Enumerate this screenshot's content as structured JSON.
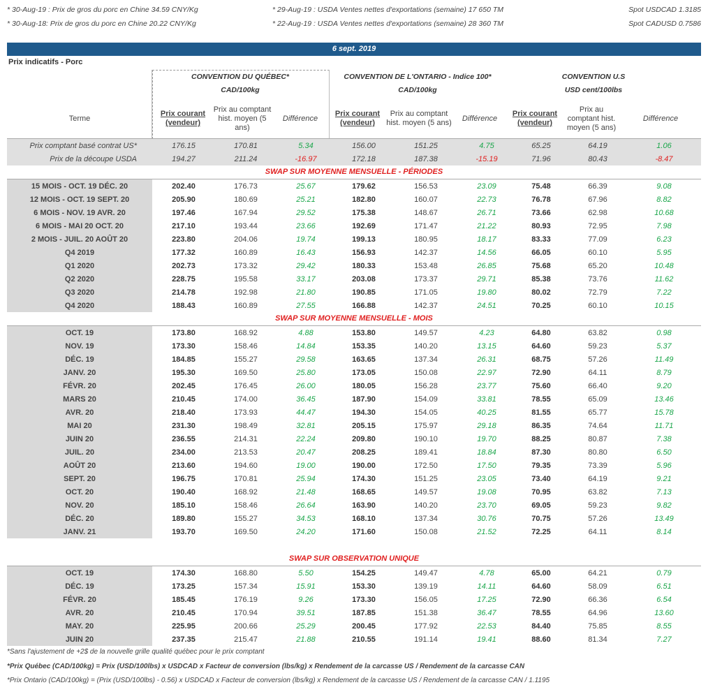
{
  "notes": {
    "left": [
      "* 30-Aug-19 : Prix de gros du porc en Chine 34.59 CNY/Kg",
      "* 30-Aug-18: Prix de gros du porc en Chine 20.22  CNY/Kg"
    ],
    "mid": [
      "* 29-Aug-19 : USDA Ventes nettes d'exportations (semaine)  17 650 TM",
      "* 22-Aug-19 : USDA Ventes nettes d'exportations (semaine) 28 360 TM"
    ],
    "right": [
      "Spot USDCAD 1.3185",
      "Spot CADUSD 0.7586"
    ]
  },
  "date": "6 sept. 2019",
  "section_title": "Prix indicatifs - Porc",
  "conventions": [
    {
      "title": "CONVENTION DU QUÉBEC*",
      "unit": "CAD/100kg"
    },
    {
      "title": "CONVENTION DE L'ONTARIO - Indice 100*",
      "unit": "CAD/100kg"
    },
    {
      "title": "CONVENTION U.S",
      "unit": "USD cent/100lbs"
    }
  ],
  "headers": {
    "term": "Terme",
    "current": "Prix courant (vendeur)",
    "hist_qc": "Prix au comptant hist. moyen (5 ans)",
    "hist_on": "Prix au comptant hist. moyen (5 ans)",
    "hist_us": "Prix au comptant hist. moyen (5 ans)",
    "diff": "Différence"
  },
  "spot_rows": [
    {
      "label": "Prix comptant basé contrat US*",
      "v": [
        "176.15",
        "170.81",
        "5.34",
        "156.00",
        "151.25",
        "4.75",
        "65.25",
        "64.19",
        "1.06"
      ]
    },
    {
      "label": "Prix de la découpe USDA",
      "v": [
        "194.27",
        "211.24",
        "-16.97",
        "172.18",
        "187.38",
        "-15.19",
        "71.96",
        "80.43",
        "-8.47"
      ]
    }
  ],
  "swap_periods_title": "SWAP SUR MOYENNE MENSUELLE - PÉRIODES",
  "swap_periods": [
    {
      "label": "15 MOIS -  OCT. 19 DÉC. 20",
      "v": [
        "202.40",
        "176.73",
        "25.67",
        "179.62",
        "156.53",
        "23.09",
        "75.48",
        "66.39",
        "9.08"
      ]
    },
    {
      "label": "12 MOIS -  OCT. 19 SEPT. 20",
      "v": [
        "205.90",
        "180.69",
        "25.21",
        "182.80",
        "160.07",
        "22.73",
        "76.78",
        "67.96",
        "8.82"
      ]
    },
    {
      "label": "6 MOIS -  NOV. 19 AVR. 20",
      "v": [
        "197.46",
        "167.94",
        "29.52",
        "175.38",
        "148.67",
        "26.71",
        "73.66",
        "62.98",
        "10.68"
      ]
    },
    {
      "label": "6 MOIS -  MAI 20 OCT. 20",
      "v": [
        "217.10",
        "193.44",
        "23.66",
        "192.69",
        "171.47",
        "21.22",
        "80.93",
        "72.95",
        "7.98"
      ]
    },
    {
      "label": "2 MOIS -  JUIL. 20  AOÛT 20",
      "v": [
        "223.80",
        "204.06",
        "19.74",
        "199.13",
        "180.95",
        "18.17",
        "83.33",
        "77.09",
        "6.23"
      ]
    },
    {
      "label": "Q4 2019",
      "v": [
        "177.32",
        "160.89",
        "16.43",
        "156.93",
        "142.37",
        "14.56",
        "66.05",
        "60.10",
        "5.95"
      ]
    },
    {
      "label": "Q1 2020",
      "v": [
        "202.73",
        "173.32",
        "29.42",
        "180.33",
        "153.48",
        "26.85",
        "75.68",
        "65.20",
        "10.48"
      ]
    },
    {
      "label": "Q2 2020",
      "v": [
        "228.75",
        "195.58",
        "33.17",
        "203.08",
        "173.37",
        "29.71",
        "85.38",
        "73.76",
        "11.62"
      ]
    },
    {
      "label": "Q3 2020",
      "v": [
        "214.78",
        "192.98",
        "21.80",
        "190.85",
        "171.05",
        "19.80",
        "80.02",
        "72.79",
        "7.22"
      ]
    },
    {
      "label": "Q4 2020",
      "v": [
        "188.43",
        "160.89",
        "27.55",
        "166.88",
        "142.37",
        "24.51",
        "70.25",
        "60.10",
        "10.15"
      ]
    }
  ],
  "swap_months_title": "SWAP SUR MOYENNE MENSUELLE - MOIS",
  "swap_months": [
    {
      "label": "OCT. 19",
      "v": [
        "173.80",
        "168.92",
        "4.88",
        "153.80",
        "149.57",
        "4.23",
        "64.80",
        "63.82",
        "0.98"
      ]
    },
    {
      "label": "NOV. 19",
      "v": [
        "173.30",
        "158.46",
        "14.84",
        "153.35",
        "140.20",
        "13.15",
        "64.60",
        "59.23",
        "5.37"
      ]
    },
    {
      "label": "DÉC. 19",
      "v": [
        "184.85",
        "155.27",
        "29.58",
        "163.65",
        "137.34",
        "26.31",
        "68.75",
        "57.26",
        "11.49"
      ]
    },
    {
      "label": "JANV. 20",
      "v": [
        "195.30",
        "169.50",
        "25.80",
        "173.05",
        "150.08",
        "22.97",
        "72.90",
        "64.11",
        "8.79"
      ]
    },
    {
      "label": "FÉVR. 20",
      "v": [
        "202.45",
        "176.45",
        "26.00",
        "180.05",
        "156.28",
        "23.77",
        "75.60",
        "66.40",
        "9.20"
      ]
    },
    {
      "label": "MARS 20",
      "v": [
        "210.45",
        "174.00",
        "36.45",
        "187.90",
        "154.09",
        "33.81",
        "78.55",
        "65.09",
        "13.46"
      ]
    },
    {
      "label": "AVR. 20",
      "v": [
        "218.40",
        "173.93",
        "44.47",
        "194.30",
        "154.05",
        "40.25",
        "81.55",
        "65.77",
        "15.78"
      ]
    },
    {
      "label": "MAI 20",
      "v": [
        "231.30",
        "198.49",
        "32.81",
        "205.15",
        "175.97",
        "29.18",
        "86.35",
        "74.64",
        "11.71"
      ]
    },
    {
      "label": "JUIN 20",
      "v": [
        "236.55",
        "214.31",
        "22.24",
        "209.80",
        "190.10",
        "19.70",
        "88.25",
        "80.87",
        "7.38"
      ]
    },
    {
      "label": "JUIL. 20",
      "v": [
        "234.00",
        "213.53",
        "20.47",
        "208.25",
        "189.41",
        "18.84",
        "87.30",
        "80.80",
        "6.50"
      ]
    },
    {
      "label": "AOÛT 20",
      "v": [
        "213.60",
        "194.60",
        "19.00",
        "190.00",
        "172.50",
        "17.50",
        "79.35",
        "73.39",
        "5.96"
      ]
    },
    {
      "label": "SEPT. 20",
      "v": [
        "196.75",
        "170.81",
        "25.94",
        "174.30",
        "151.25",
        "23.05",
        "73.40",
        "64.19",
        "9.21"
      ]
    },
    {
      "label": "OCT. 20",
      "v": [
        "190.40",
        "168.92",
        "21.48",
        "168.65",
        "149.57",
        "19.08",
        "70.95",
        "63.82",
        "7.13"
      ]
    },
    {
      "label": "NOV. 20",
      "v": [
        "185.10",
        "158.46",
        "26.64",
        "163.90",
        "140.20",
        "23.70",
        "69.05",
        "59.23",
        "9.82"
      ]
    },
    {
      "label": "DÉC. 20",
      "v": [
        "189.80",
        "155.27",
        "34.53",
        "168.10",
        "137.34",
        "30.76",
        "70.75",
        "57.26",
        "13.49"
      ]
    },
    {
      "label": "JANV. 21",
      "v": [
        "193.70",
        "169.50",
        "24.20",
        "171.60",
        "150.08",
        "21.52",
        "72.25",
        "64.11",
        "8.14"
      ]
    }
  ],
  "swap_obs_title": "SWAP SUR OBSERVATION UNIQUE",
  "swap_obs": [
    {
      "label": "OCT. 19",
      "v": [
        "174.30",
        "168.80",
        "5.50",
        "154.25",
        "149.47",
        "4.78",
        "65.00",
        "64.21",
        "0.79"
      ]
    },
    {
      "label": "DÉC. 19",
      "v": [
        "173.25",
        "157.34",
        "15.91",
        "153.30",
        "139.19",
        "14.11",
        "64.60",
        "58.09",
        "6.51"
      ]
    },
    {
      "label": "FÉVR. 20",
      "v": [
        "185.45",
        "176.19",
        "9.26",
        "173.30",
        "156.05",
        "17.25",
        "72.90",
        "66.36",
        "6.54"
      ]
    },
    {
      "label": "AVR. 20",
      "v": [
        "210.45",
        "170.94",
        "39.51",
        "187.85",
        "151.38",
        "36.47",
        "78.55",
        "64.96",
        "13.60"
      ]
    },
    {
      "label": "MAY. 20",
      "v": [
        "225.95",
        "200.66",
        "25.29",
        "200.45",
        "177.92",
        "22.53",
        "84.40",
        "75.85",
        "8.55"
      ]
    },
    {
      "label": "JUIN 20",
      "v": [
        "237.35",
        "215.47",
        "21.88",
        "210.55",
        "191.14",
        "19.41",
        "88.60",
        "81.34",
        "7.27"
      ]
    }
  ],
  "footer": [
    "*Sans l'ajustement de +2$ de la nouvelle grille qualité québec pour le prix comptant",
    "*Prix Québec (CAD/100kg) = Prix (USD/100lbs) x USDCAD x Facteur de conversion (lbs/kg) x Rendement de la carcasse US / Rendement de la carcasse CAN",
    "*Prix Ontario (CAD/100kg) = (Prix (USD/100lbs) - 0.56) x USDCAD x Facteur de conversion (lbs/kg) x Rendement de la carcasse US / Rendement de la carcasse CAN / 1.1195"
  ]
}
